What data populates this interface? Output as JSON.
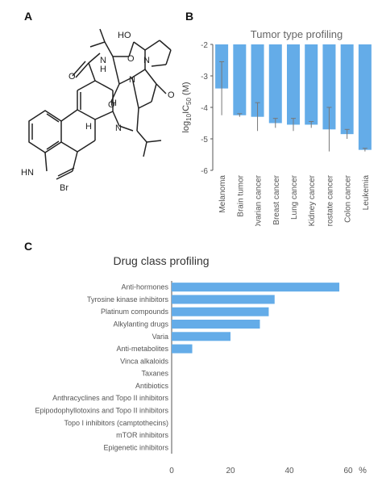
{
  "panels": {
    "a": "A",
    "b": "B",
    "c": "C"
  },
  "molecule": {
    "labels": {
      "oh": "HO",
      "nh_amide": "N",
      "h_amide": "H",
      "n_ring": "N",
      "n_pyrr": "N",
      "n_bottom": "N",
      "o_ring": "O",
      "o_carbonyl1": "O",
      "o_carbonyl2": "O",
      "o_carbonyl3": "O",
      "h_stereo1": "H",
      "h_stereo2": "H",
      "n_methyl": "N",
      "hn_indole": "HN",
      "br": "Br"
    }
  },
  "colors": {
    "bar": "#64ace8",
    "axis": "#555555",
    "text": "#555555"
  },
  "chart_data": [
    {
      "id": "tumor",
      "type": "bar",
      "title": "Tumor type profiling",
      "ylabel": "log10IC50 (M)",
      "ylim": [
        -6,
        -2
      ],
      "yticks": [
        -2,
        -3,
        -4,
        -5,
        -6
      ],
      "categories": [
        "Melanoma",
        "Brain tumor",
        "Ovarian cancer",
        "Breast cancer",
        "Lung cancer",
        "Kidney cancer",
        "Prostate cancer",
        "Colon cancer",
        "Leukemia"
      ],
      "values": [
        -3.4,
        -4.25,
        -4.3,
        -4.5,
        -4.55,
        -4.55,
        -4.7,
        -4.85,
        -5.35
      ],
      "error": [
        0.85,
        0.05,
        0.45,
        0.15,
        0.2,
        0.1,
        0.7,
        0.15,
        0.05
      ]
    },
    {
      "id": "drug",
      "type": "bar",
      "orientation": "horizontal",
      "title": "Drug class profiling",
      "xlabel": "%",
      "xlim": [
        0,
        60
      ],
      "xticks": [
        0,
        20,
        40,
        60
      ],
      "categories": [
        "Anti-hormones",
        "Tyrosine kinase inhibitors",
        "Platinum compounds",
        "Alkylanting drugs",
        "Varia",
        "Anti-metabolites",
        "Vinca alkaloids",
        "Taxanes",
        "Antibiotics",
        "Anthracyclines and Topo II inhibitors",
        "Epipodophyllotoxins and Topo II inhibitors",
        "Topo I inhibitors (camptothecins)",
        "mTOR inhibitors",
        "Epigenetic inhibitors"
      ],
      "values": [
        57,
        35,
        33,
        30,
        20,
        7,
        0,
        0,
        0,
        0,
        0,
        0,
        0,
        0
      ]
    }
  ]
}
